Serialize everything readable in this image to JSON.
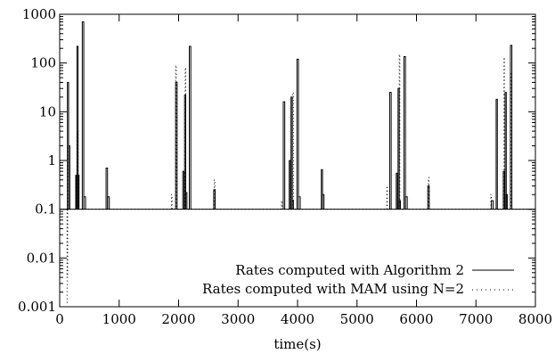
{
  "chart_data": {
    "type": "line",
    "title": "",
    "xlabel": "time(s)",
    "ylabel": "",
    "xlim": [
      0,
      8000
    ],
    "ylim": [
      0.001,
      1000
    ],
    "yscale": "log",
    "grid": false,
    "legend_placement": "bottom-right",
    "x_ticks": [
      0,
      1000,
      2000,
      3000,
      4000,
      5000,
      6000,
      7000,
      8000
    ],
    "x_tick_labels": [
      "0",
      "1000",
      "2000",
      "3000",
      "4000",
      "5000",
      "6000",
      "7000",
      "8000"
    ],
    "y_ticks": [
      0.001,
      0.01,
      0.1,
      1,
      10,
      100,
      1000
    ],
    "y_tick_labels": [
      "0.001",
      "0.01",
      "0.1",
      "1",
      "10",
      "100",
      "1000"
    ],
    "baseline": 0.1,
    "series": [
      {
        "name": "Rates computed with Algorithm 2",
        "style": "solid",
        "color": "#000000",
        "baseline": 0.1,
        "spikes": [
          {
            "x": 130,
            "w": 20,
            "y": 40
          },
          {
            "x": 150,
            "w": 20,
            "y": 2
          },
          {
            "x": 270,
            "w": 15,
            "y": 0.5
          },
          {
            "x": 290,
            "w": 20,
            "y": 220
          },
          {
            "x": 310,
            "w": 15,
            "y": 0.5
          },
          {
            "x": 380,
            "w": 25,
            "y": 700
          },
          {
            "x": 405,
            "w": 30,
            "y": 0.18
          },
          {
            "x": 780,
            "w": 25,
            "y": 0.7
          },
          {
            "x": 805,
            "w": 30,
            "y": 0.18
          },
          {
            "x": 1950,
            "w": 25,
            "y": 40
          },
          {
            "x": 2070,
            "w": 20,
            "y": 0.6
          },
          {
            "x": 2100,
            "w": 20,
            "y": 22
          },
          {
            "x": 2120,
            "w": 20,
            "y": 0.22
          },
          {
            "x": 2180,
            "w": 25,
            "y": 220
          },
          {
            "x": 2590,
            "w": 25,
            "y": 0.25
          },
          {
            "x": 3760,
            "w": 25,
            "y": 16
          },
          {
            "x": 3860,
            "w": 20,
            "y": 1
          },
          {
            "x": 3890,
            "w": 20,
            "y": 20
          },
          {
            "x": 3910,
            "w": 20,
            "y": 0.15
          },
          {
            "x": 3990,
            "w": 25,
            "y": 120
          },
          {
            "x": 4015,
            "w": 30,
            "y": 0.18
          },
          {
            "x": 4400,
            "w": 20,
            "y": 0.65
          },
          {
            "x": 4420,
            "w": 25,
            "y": 0.2
          },
          {
            "x": 5550,
            "w": 25,
            "y": 25
          },
          {
            "x": 5660,
            "w": 20,
            "y": 0.55
          },
          {
            "x": 5690,
            "w": 20,
            "y": 30
          },
          {
            "x": 5710,
            "w": 20,
            "y": 0.15
          },
          {
            "x": 5790,
            "w": 25,
            "y": 135
          },
          {
            "x": 5815,
            "w": 30,
            "y": 0.18
          },
          {
            "x": 6190,
            "w": 25,
            "y": 0.3
          },
          {
            "x": 7260,
            "w": 30,
            "y": 0.15
          },
          {
            "x": 7340,
            "w": 20,
            "y": 18
          },
          {
            "x": 7460,
            "w": 20,
            "y": 0.6
          },
          {
            "x": 7490,
            "w": 20,
            "y": 25
          },
          {
            "x": 7510,
            "w": 20,
            "y": 0.2
          },
          {
            "x": 7580,
            "w": 25,
            "y": 230
          }
        ]
      },
      {
        "name": "Rates computed with MAM using N=2",
        "style": "dotted",
        "color": "#000000",
        "baseline": 0.1,
        "spikes": [
          {
            "x": 125,
            "w": 10,
            "y": 0.004,
            "low": 0.0012
          },
          {
            "x": 140,
            "w": 10,
            "y": 2
          },
          {
            "x": 300,
            "w": 10,
            "y": 4
          },
          {
            "x": 1880,
            "w": 10,
            "y": 0.2
          },
          {
            "x": 1950,
            "w": 10,
            "y": 90
          },
          {
            "x": 2110,
            "w": 10,
            "y": 80
          },
          {
            "x": 2600,
            "w": 10,
            "y": 0.4
          },
          {
            "x": 3730,
            "w": 10,
            "y": 0.15
          },
          {
            "x": 3920,
            "w": 10,
            "y": 25
          },
          {
            "x": 5500,
            "w": 10,
            "y": 0.3
          },
          {
            "x": 5710,
            "w": 10,
            "y": 150
          },
          {
            "x": 6200,
            "w": 10,
            "y": 0.45
          },
          {
            "x": 7250,
            "w": 10,
            "y": 0.2
          },
          {
            "x": 7470,
            "w": 10,
            "y": 130
          },
          {
            "x": 7580,
            "w": 10,
            "y": 60
          }
        ]
      }
    ]
  }
}
